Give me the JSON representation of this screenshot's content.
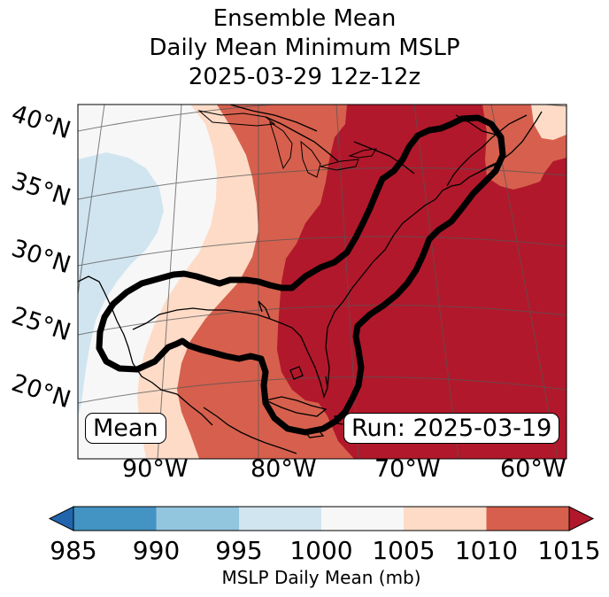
{
  "title": {
    "line1": "Ensemble Mean",
    "line2": "Daily Mean Minimum MSLP",
    "line3": "2025-03-29 12z-12z"
  },
  "map": {
    "lat_labels": [
      "40°N",
      "35°N",
      "30°N",
      "25°N",
      "20°N"
    ],
    "lon_labels": [
      "90°W",
      "80°W",
      "70°W",
      "60°W"
    ],
    "mean_box": "Mean",
    "run_box": "Run: 2025-03-19",
    "fill_colors": {
      "lt985": "#2166ac",
      "985_990": "#4393c3",
      "990_995": "#92c5de",
      "995_1000": "#d1e5f0",
      "1000_1005": "#f7f7f7",
      "1005_1010": "#fddbc7",
      "1010_1015": "#d6604d",
      "gt1015": "#b2182b"
    }
  },
  "colorbar": {
    "ticks": [
      "985",
      "990",
      "995",
      "1000",
      "1005",
      "1010",
      "1015"
    ],
    "label": "MSLP Daily Mean (mb)",
    "colors": [
      "#2166ac",
      "#4393c3",
      "#92c5de",
      "#d1e5f0",
      "#f7f7f7",
      "#fddbc7",
      "#d6604d",
      "#b2182b"
    ]
  }
}
